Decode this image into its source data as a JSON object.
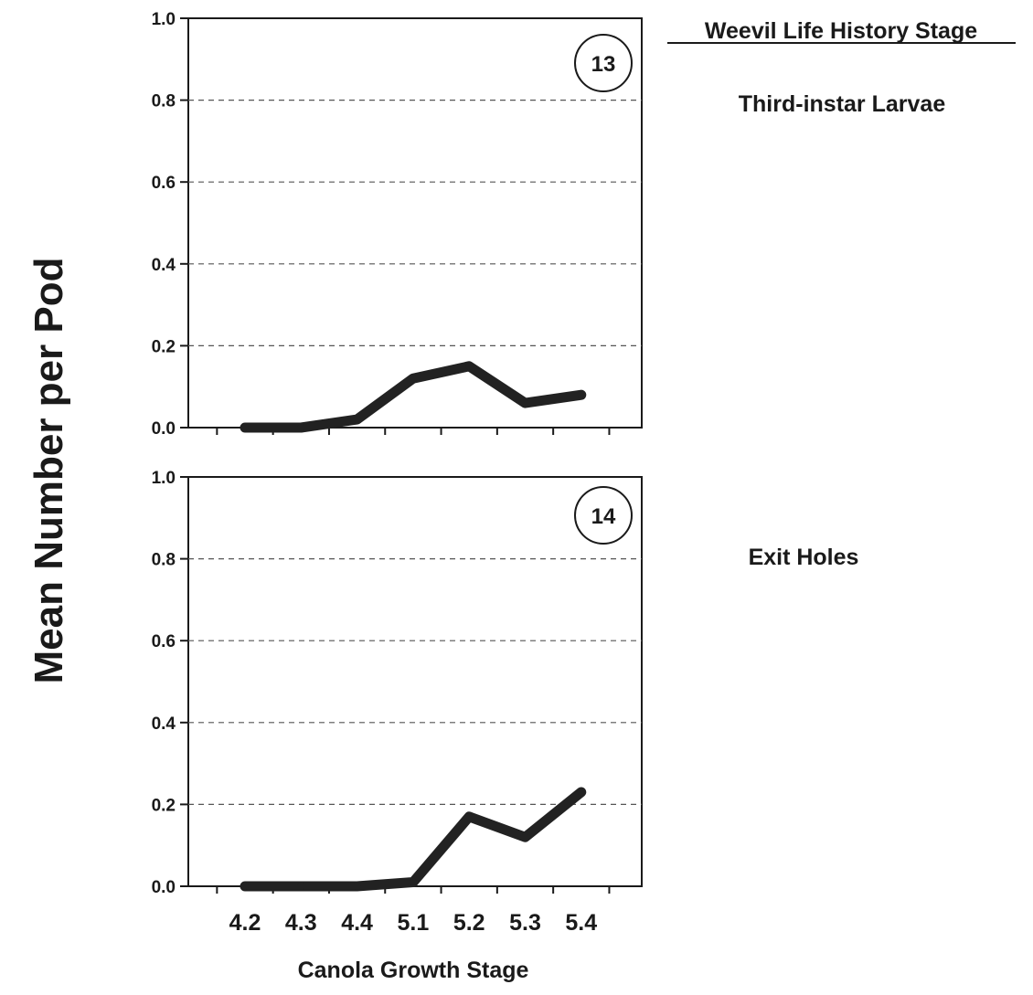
{
  "figure": {
    "ylabel": "Mean Number  per Pod",
    "xlabel": "Canola Growth Stage",
    "legend_title": "Weevil Life History Stage"
  },
  "chart_data": [
    {
      "type": "line",
      "panel_label": "13",
      "stage_label": "Third-instar Larvae",
      "categories": [
        "4.2",
        "4.3",
        "4.4",
        "5.1",
        "5.2",
        "5.3",
        "5.4"
      ],
      "values": [
        0.0,
        0.0,
        0.02,
        0.12,
        0.15,
        0.06,
        0.08
      ],
      "ylim": [
        0,
        1.0
      ],
      "yticks": [
        "0.0",
        "0.2",
        "0.4",
        "0.6",
        "0.8",
        "1.0"
      ],
      "grid": "horizontal dashed",
      "line_color": "#222222"
    },
    {
      "type": "line",
      "panel_label": "14",
      "stage_label": "Exit Holes",
      "categories": [
        "4.2",
        "4.3",
        "4.4",
        "5.1",
        "5.2",
        "5.3",
        "5.4"
      ],
      "values": [
        0.0,
        0.0,
        0.0,
        0.01,
        0.17,
        0.12,
        0.23
      ],
      "ylim": [
        0,
        1.0
      ],
      "yticks": [
        "0.0",
        "0.2",
        "0.4",
        "0.6",
        "0.8",
        "1.0"
      ],
      "grid": "horizontal dashed",
      "line_color": "#222222"
    }
  ]
}
